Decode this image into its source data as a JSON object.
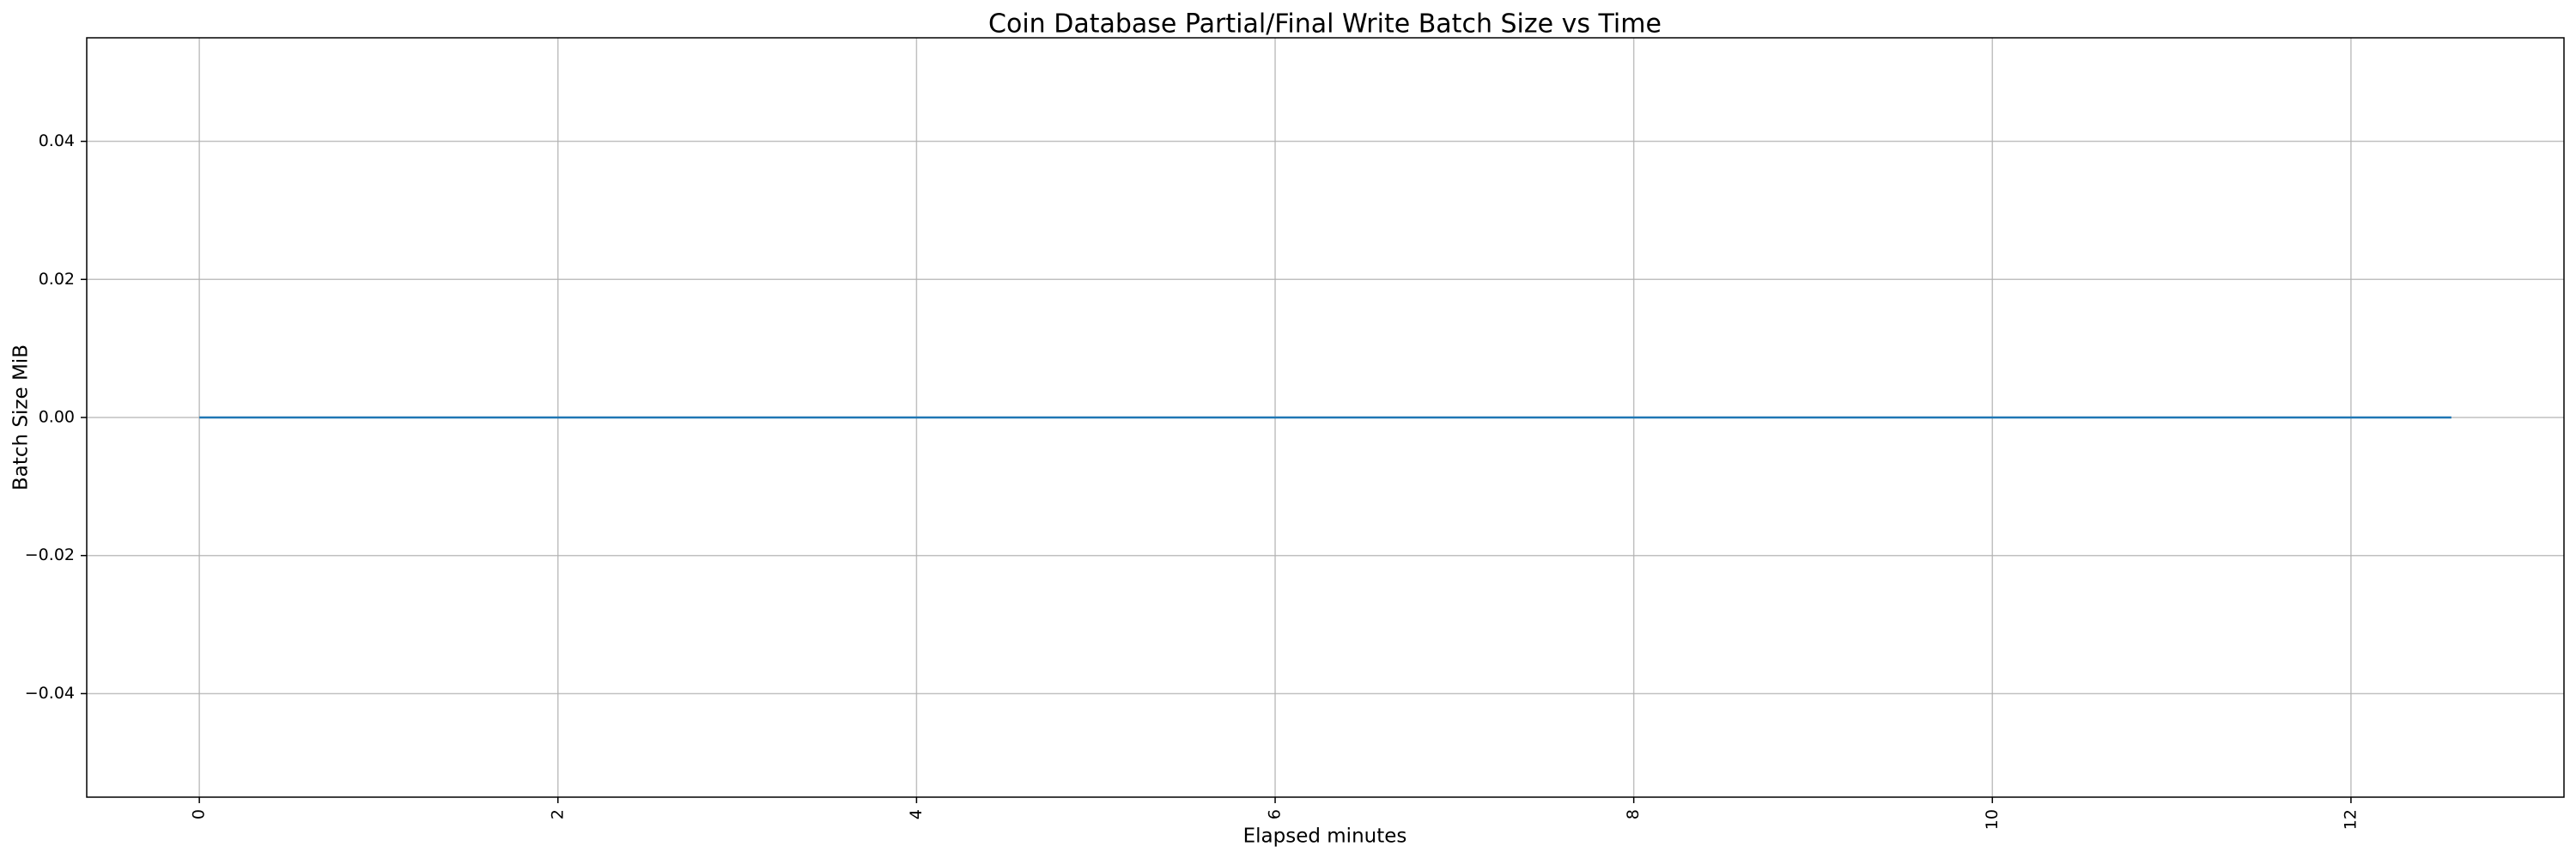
{
  "chart_data": {
    "type": "line",
    "title": "Coin Database Partial/Final Write Batch Size vs Time",
    "x_label": "Elapsed minutes",
    "y_label": "Batch Size MiB",
    "x": [
      0,
      12.56
    ],
    "series": [
      {
        "name": "Batch Size MiB",
        "color": "#1f77b4",
        "values": [
          0,
          0
        ]
      }
    ],
    "xlim": [
      -0.628,
      13.188
    ],
    "xticks": [
      0,
      2,
      4,
      6,
      8,
      10,
      12
    ],
    "ylim": [
      -0.055,
      0.055
    ],
    "yticks": [
      {
        "value": -0.04,
        "label": "−0.04"
      },
      {
        "value": -0.02,
        "label": "−0.02"
      },
      {
        "value": 0,
        "label": "0.00"
      },
      0.02,
      0.04
    ],
    "grid": true
  }
}
